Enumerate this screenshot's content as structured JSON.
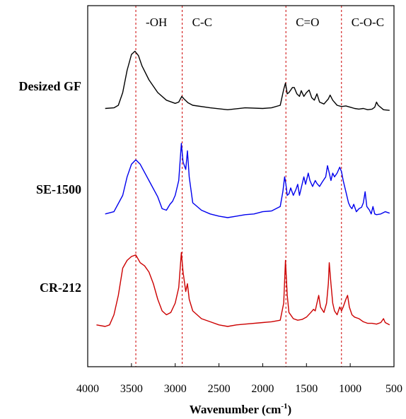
{
  "chart_data": {
    "type": "line",
    "title": "",
    "xlabel_main": "Wavenumber (cm",
    "xlabel_sup": "-1",
    "xlabel_close": ")",
    "ylabel": "",
    "xlim": [
      4000,
      500
    ],
    "x_reversed": true,
    "xticks": [
      "4000",
      "3500",
      "3000",
      "2500",
      "2000",
      "1500",
      "1000",
      "500"
    ],
    "xtick_values": [
      4000,
      3500,
      3000,
      2500,
      2000,
      1500,
      1000,
      500
    ],
    "grid": false,
    "reference_lines": [
      {
        "x": 3450,
        "label": "-OH"
      },
      {
        "x": 2920,
        "label": "C-C"
      },
      {
        "x": 1735,
        "label": "C=O"
      },
      {
        "x": 1100,
        "label": "C-O-C"
      }
    ],
    "series": [
      {
        "name": "Desized GF",
        "color": "#000000",
        "points": [
          [
            3800,
            0.05
          ],
          [
            3700,
            0.06
          ],
          [
            3650,
            0.1
          ],
          [
            3600,
            0.3
          ],
          [
            3550,
            0.65
          ],
          [
            3500,
            0.9
          ],
          [
            3460,
            0.95
          ],
          [
            3420,
            0.88
          ],
          [
            3380,
            0.72
          ],
          [
            3300,
            0.5
          ],
          [
            3200,
            0.3
          ],
          [
            3100,
            0.18
          ],
          [
            3000,
            0.13
          ],
          [
            2960,
            0.15
          ],
          [
            2925,
            0.24
          ],
          [
            2900,
            0.2
          ],
          [
            2855,
            0.14
          ],
          [
            2800,
            0.1
          ],
          [
            2600,
            0.06
          ],
          [
            2400,
            0.03
          ],
          [
            2200,
            0.06
          ],
          [
            2000,
            0.05
          ],
          [
            1900,
            0.06
          ],
          [
            1800,
            0.1
          ],
          [
            1760,
            0.35
          ],
          [
            1740,
            0.45
          ],
          [
            1720,
            0.28
          ],
          [
            1700,
            0.3
          ],
          [
            1660,
            0.38
          ],
          [
            1640,
            0.38
          ],
          [
            1610,
            0.28
          ],
          [
            1580,
            0.24
          ],
          [
            1560,
            0.33
          ],
          [
            1530,
            0.24
          ],
          [
            1500,
            0.3
          ],
          [
            1470,
            0.34
          ],
          [
            1440,
            0.22
          ],
          [
            1410,
            0.18
          ],
          [
            1380,
            0.28
          ],
          [
            1350,
            0.15
          ],
          [
            1300,
            0.12
          ],
          [
            1250,
            0.2
          ],
          [
            1230,
            0.26
          ],
          [
            1200,
            0.18
          ],
          [
            1150,
            0.1
          ],
          [
            1100,
            0.08
          ],
          [
            1050,
            0.09
          ],
          [
            1000,
            0.07
          ],
          [
            950,
            0.05
          ],
          [
            900,
            0.04
          ],
          [
            850,
            0.05
          ],
          [
            800,
            0.03
          ],
          [
            750,
            0.04
          ],
          [
            720,
            0.07
          ],
          [
            700,
            0.15
          ],
          [
            680,
            0.1
          ],
          [
            620,
            0.03
          ],
          [
            550,
            0.02
          ]
        ]
      },
      {
        "name": "SE-1500",
        "color": "#0000ee",
        "points": [
          [
            3800,
            0.05
          ],
          [
            3700,
            0.08
          ],
          [
            3600,
            0.3
          ],
          [
            3550,
            0.55
          ],
          [
            3500,
            0.72
          ],
          [
            3450,
            0.78
          ],
          [
            3400,
            0.72
          ],
          [
            3300,
            0.5
          ],
          [
            3200,
            0.28
          ],
          [
            3150,
            0.12
          ],
          [
            3100,
            0.1
          ],
          [
            3060,
            0.18
          ],
          [
            3030,
            0.22
          ],
          [
            3000,
            0.3
          ],
          [
            2960,
            0.5
          ],
          [
            2930,
            1.0
          ],
          [
            2910,
            0.75
          ],
          [
            2880,
            0.65
          ],
          [
            2860,
            0.9
          ],
          [
            2840,
            0.55
          ],
          [
            2800,
            0.2
          ],
          [
            2700,
            0.1
          ],
          [
            2600,
            0.05
          ],
          [
            2500,
            0.02
          ],
          [
            2400,
            0.0
          ],
          [
            2300,
            0.02
          ],
          [
            2200,
            0.04
          ],
          [
            2100,
            0.05
          ],
          [
            2000,
            0.08
          ],
          [
            1900,
            0.09
          ],
          [
            1800,
            0.15
          ],
          [
            1770,
            0.35
          ],
          [
            1750,
            0.55
          ],
          [
            1735,
            0.45
          ],
          [
            1720,
            0.3
          ],
          [
            1700,
            0.32
          ],
          [
            1680,
            0.4
          ],
          [
            1650,
            0.3
          ],
          [
            1620,
            0.38
          ],
          [
            1600,
            0.45
          ],
          [
            1580,
            0.3
          ],
          [
            1560,
            0.4
          ],
          [
            1530,
            0.55
          ],
          [
            1510,
            0.45
          ],
          [
            1480,
            0.6
          ],
          [
            1460,
            0.5
          ],
          [
            1430,
            0.42
          ],
          [
            1400,
            0.5
          ],
          [
            1380,
            0.46
          ],
          [
            1350,
            0.42
          ],
          [
            1320,
            0.48
          ],
          [
            1280,
            0.55
          ],
          [
            1260,
            0.7
          ],
          [
            1240,
            0.6
          ],
          [
            1220,
            0.5
          ],
          [
            1200,
            0.6
          ],
          [
            1180,
            0.55
          ],
          [
            1150,
            0.6
          ],
          [
            1120,
            0.68
          ],
          [
            1100,
            0.62
          ],
          [
            1080,
            0.5
          ],
          [
            1050,
            0.35
          ],
          [
            1020,
            0.2
          ],
          [
            1000,
            0.15
          ],
          [
            980,
            0.12
          ],
          [
            960,
            0.18
          ],
          [
            930,
            0.08
          ],
          [
            900,
            0.12
          ],
          [
            870,
            0.14
          ],
          [
            850,
            0.2
          ],
          [
            830,
            0.35
          ],
          [
            810,
            0.15
          ],
          [
            780,
            0.1
          ],
          [
            760,
            0.05
          ],
          [
            740,
            0.15
          ],
          [
            720,
            0.05
          ],
          [
            700,
            0.04
          ],
          [
            650,
            0.05
          ],
          [
            600,
            0.08
          ],
          [
            550,
            0.06
          ]
        ]
      },
      {
        "name": "CR-212",
        "color": "#cc0000",
        "points": [
          [
            3900,
            0.02
          ],
          [
            3800,
            0.0
          ],
          [
            3750,
            0.02
          ],
          [
            3700,
            0.15
          ],
          [
            3650,
            0.4
          ],
          [
            3600,
            0.75
          ],
          [
            3550,
            0.85
          ],
          [
            3500,
            0.9
          ],
          [
            3450,
            0.92
          ],
          [
            3400,
            0.82
          ],
          [
            3350,
            0.78
          ],
          [
            3300,
            0.7
          ],
          [
            3250,
            0.55
          ],
          [
            3200,
            0.35
          ],
          [
            3150,
            0.2
          ],
          [
            3100,
            0.15
          ],
          [
            3050,
            0.18
          ],
          [
            3000,
            0.3
          ],
          [
            2960,
            0.5
          ],
          [
            2930,
            0.95
          ],
          [
            2910,
            0.7
          ],
          [
            2880,
            0.45
          ],
          [
            2860,
            0.55
          ],
          [
            2840,
            0.35
          ],
          [
            2800,
            0.2
          ],
          [
            2700,
            0.1
          ],
          [
            2600,
            0.06
          ],
          [
            2500,
            0.02
          ],
          [
            2400,
            0.0
          ],
          [
            2300,
            0.02
          ],
          [
            2200,
            0.03
          ],
          [
            2000,
            0.05
          ],
          [
            1900,
            0.06
          ],
          [
            1800,
            0.08
          ],
          [
            1760,
            0.3
          ],
          [
            1740,
            0.85
          ],
          [
            1720,
            0.4
          ],
          [
            1700,
            0.18
          ],
          [
            1650,
            0.1
          ],
          [
            1600,
            0.08
          ],
          [
            1550,
            0.09
          ],
          [
            1500,
            0.12
          ],
          [
            1450,
            0.18
          ],
          [
            1420,
            0.22
          ],
          [
            1400,
            0.2
          ],
          [
            1380,
            0.3
          ],
          [
            1360,
            0.4
          ],
          [
            1340,
            0.25
          ],
          [
            1300,
            0.18
          ],
          [
            1270,
            0.3
          ],
          [
            1250,
            0.55
          ],
          [
            1240,
            0.82
          ],
          [
            1220,
            0.55
          ],
          [
            1200,
            0.3
          ],
          [
            1180,
            0.2
          ],
          [
            1150,
            0.15
          ],
          [
            1120,
            0.25
          ],
          [
            1100,
            0.2
          ],
          [
            1080,
            0.25
          ],
          [
            1050,
            0.35
          ],
          [
            1030,
            0.4
          ],
          [
            1010,
            0.25
          ],
          [
            980,
            0.15
          ],
          [
            950,
            0.12
          ],
          [
            900,
            0.1
          ],
          [
            850,
            0.06
          ],
          [
            800,
            0.04
          ],
          [
            750,
            0.04
          ],
          [
            700,
            0.03
          ],
          [
            650,
            0.05
          ],
          [
            620,
            0.1
          ],
          [
            600,
            0.05
          ],
          [
            550,
            0.02
          ]
        ]
      }
    ]
  }
}
